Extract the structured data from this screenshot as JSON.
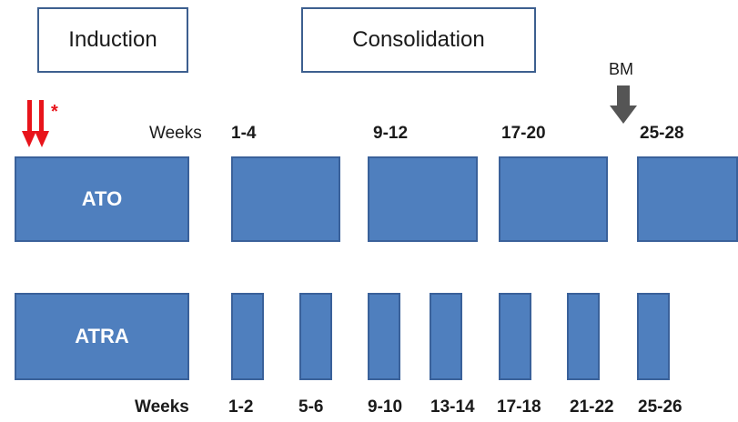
{
  "phases": {
    "induction": "Induction",
    "consolidation": "Consolidation"
  },
  "annotation": {
    "star": "*",
    "bm_label": "BM"
  },
  "ato": {
    "label": "ATO",
    "weeks_label": "Weeks",
    "week_ranges": [
      "1-4",
      "9-12",
      "17-20",
      "25-28"
    ]
  },
  "atra": {
    "label": "ATRA",
    "weeks_label": "Weeks",
    "week_ranges": [
      "1-2",
      "5-6",
      "9-10",
      "13-14",
      "17-18",
      "21-22",
      "25-26"
    ]
  },
  "colors": {
    "block_fill": "#4f7fbe",
    "block_border": "#3a619a",
    "red_arrow": "#e8141b",
    "bm_arrow": "#555555",
    "phase_border": "#3d5f8f"
  },
  "icons": {
    "red_arrows": "double-down-arrow-icon",
    "bm_arrow": "down-arrow-icon"
  }
}
